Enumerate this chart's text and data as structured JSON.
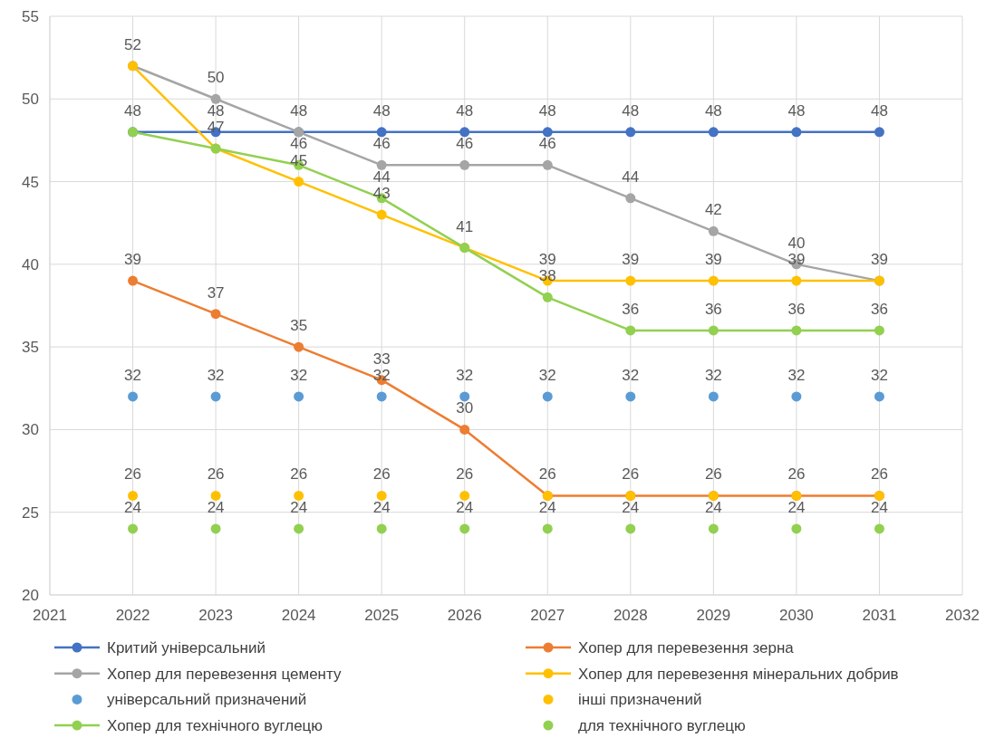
{
  "chart_data": {
    "type": "line",
    "x": [
      2022,
      2023,
      2024,
      2025,
      2026,
      2027,
      2028,
      2029,
      2030,
      2031
    ],
    "xlim": [
      2021,
      2032
    ],
    "xticks": [
      2021,
      2022,
      2023,
      2024,
      2025,
      2026,
      2027,
      2028,
      2029,
      2030,
      2031,
      2032
    ],
    "ylim": [
      20,
      55
    ],
    "yticks": [
      20,
      25,
      30,
      35,
      40,
      45,
      50,
      55
    ],
    "grid": true,
    "legend": "bottom",
    "marker": "circle",
    "series": [
      {
        "name": "Критий універсальний",
        "color": "#4472c4",
        "values": [
          48,
          48,
          48,
          48,
          48,
          48,
          48,
          48,
          48,
          48
        ],
        "value_labels": [
          "48",
          "48",
          "48",
          "48",
          "48",
          "48",
          "48",
          "48",
          "48",
          "48"
        ]
      },
      {
        "name": "Хопер для перевезення зерна",
        "color": "#ed7d31",
        "values": [
          39,
          37,
          35,
          33,
          30,
          26,
          26,
          26,
          26,
          26
        ],
        "value_labels": [
          "39",
          "37",
          "35",
          "33",
          "30",
          "26",
          "26",
          "26",
          "26",
          "26"
        ]
      },
      {
        "name": "Хопер для перевезення цементу",
        "color": "#a5a5a5",
        "values": [
          52,
          50,
          48,
          46,
          46,
          46,
          44,
          42,
          40,
          39
        ],
        "value_labels": [
          "52",
          "50",
          null,
          "46",
          "46",
          "46",
          "44",
          "42",
          "40",
          "39"
        ]
      },
      {
        "name": "Хопер для перевезення мінеральних добрив",
        "color": "#ffc000",
        "values": [
          52,
          47,
          45,
          43,
          41,
          39,
          39,
          39,
          39,
          39
        ],
        "value_labels": [
          null,
          "47",
          "45",
          "43",
          "41",
          "39",
          "39",
          "39",
          "39",
          null
        ]
      },
      {
        "name": "універсальний призначений",
        "type": "scatter",
        "color": "#5b9bd5",
        "values": [
          32,
          32,
          32,
          32,
          32,
          32,
          32,
          32,
          32,
          32
        ],
        "value_labels": [
          "32",
          "32",
          "32",
          "32",
          "32",
          "32",
          "32",
          "32",
          "32",
          "32"
        ]
      },
      {
        "name": "інші призначений",
        "type": "scatter",
        "color": "#ffc000",
        "values": [
          26,
          26,
          26,
          26,
          26,
          26,
          26,
          26,
          26,
          26
        ],
        "value_labels": [
          "26",
          "26",
          "26",
          "26",
          "26",
          null,
          null,
          null,
          null,
          null
        ]
      },
      {
        "name": "Хопер для технічного вуглецю",
        "color": "#92d050",
        "values": [
          48,
          47,
          46,
          44,
          41,
          38,
          36,
          36,
          36,
          36
        ],
        "value_labels": [
          null,
          null,
          "46",
          "44",
          null,
          "38",
          "36",
          "36",
          "36",
          "36"
        ]
      },
      {
        "name": "для технічного вуглецю",
        "type": "scatter",
        "color": "#92d050",
        "values": [
          24,
          24,
          24,
          24,
          24,
          24,
          24,
          24,
          24,
          24
        ],
        "value_labels": [
          "24",
          "24",
          "24",
          "24",
          "24",
          "24",
          "24",
          "24",
          "24",
          "24"
        ]
      }
    ]
  }
}
